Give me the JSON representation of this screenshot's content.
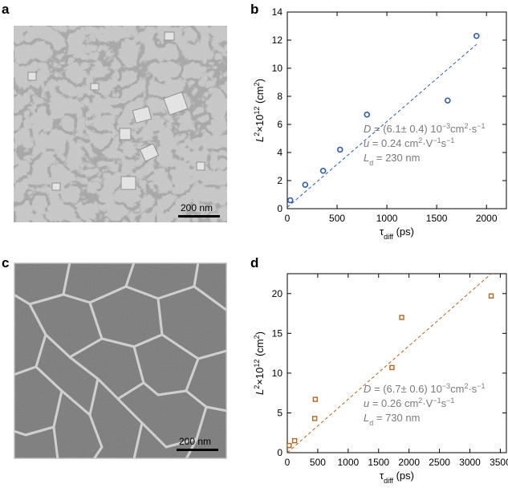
{
  "figure": {
    "panels": {
      "a": "a",
      "b": "b",
      "c": "c",
      "d": "d"
    },
    "scale_bar_a": "200 nm",
    "scale_bar_c": "200 nm"
  },
  "chart_data": [
    {
      "panel": "b",
      "type": "scatter",
      "ylabel_parts": {
        "base": "L",
        "sup1": "2",
        "mid": "×10",
        "sup2": "12",
        "unit": " (cm",
        "sup3": "2",
        "close": ")"
      },
      "xlabel_parts": {
        "base": "τ",
        "sub": "diff",
        "unit": " (ps)"
      },
      "xlim": [
        0,
        2200
      ],
      "ylim": [
        0,
        14
      ],
      "xticks": [
        0,
        500,
        1000,
        1500,
        2000
      ],
      "yticks": [
        0,
        2,
        4,
        6,
        8,
        10,
        12,
        14
      ],
      "marker": "circle",
      "color": "#2b5ca8",
      "points": [
        [
          30,
          0.6
        ],
        [
          180,
          1.7
        ],
        [
          360,
          2.7
        ],
        [
          530,
          4.2
        ],
        [
          800,
          6.7
        ],
        [
          1610,
          7.7
        ],
        [
          1900,
          12.3
        ]
      ],
      "fit_line": [
        [
          0,
          0.1
        ],
        [
          1900,
          11.7
        ]
      ],
      "annotations": {
        "D": {
          "var": "D",
          "text": " = (6.1± 0.4) 10",
          "sup": "−3",
          "unit": "cm",
          "sup2": "2",
          "unit2": "·s",
          "sup3": "−1"
        },
        "u": {
          "var": "u",
          "text": " = 0.24 cm",
          "sup": "2",
          "unit": "·V",
          "sup2": "−1",
          "unit2": "s",
          "sup3": "−1"
        },
        "L": {
          "var": "L",
          "sub": "d",
          "text": " = 230 nm"
        }
      }
    },
    {
      "panel": "d",
      "type": "scatter",
      "ylabel_parts": {
        "base": "L",
        "sup1": "2",
        "mid": "×10",
        "sup2": "12",
        "unit": " (cm",
        "sup3": "2",
        "close": ")"
      },
      "xlabel_parts": {
        "base": "τ",
        "sub": "diff",
        "unit": " (ps)"
      },
      "xlim": [
        0,
        3600
      ],
      "ylim": [
        0,
        22.5
      ],
      "xticks": [
        0,
        500,
        1000,
        1500,
        2000,
        2500,
        3000,
        3500
      ],
      "yticks": [
        0,
        5,
        10,
        15,
        20
      ],
      "marker": "square",
      "color": "#b5651d",
      "points": [
        [
          30,
          0.9
        ],
        [
          120,
          1.5
        ],
        [
          450,
          4.3
        ],
        [
          460,
          6.7
        ],
        [
          1720,
          10.7
        ],
        [
          1880,
          17.0
        ],
        [
          3350,
          19.7
        ]
      ],
      "fit_line": [
        [
          0,
          0
        ],
        [
          3350,
          22.5
        ]
      ],
      "annotations": {
        "D": {
          "var": "D",
          "text": " = (6.7± 0.6) 10",
          "sup": "−3",
          "unit": "cm",
          "sup2": "2",
          "unit2": "·s",
          "sup3": "−1"
        },
        "u": {
          "var": "u",
          "text": " = 0.26 cm",
          "sup": "2",
          "unit": "·V",
          "sup2": "−1",
          "unit2": "s",
          "sup3": "−1"
        },
        "L": {
          "var": "L",
          "sub": "d",
          "text": " = 730 nm"
        }
      }
    }
  ]
}
